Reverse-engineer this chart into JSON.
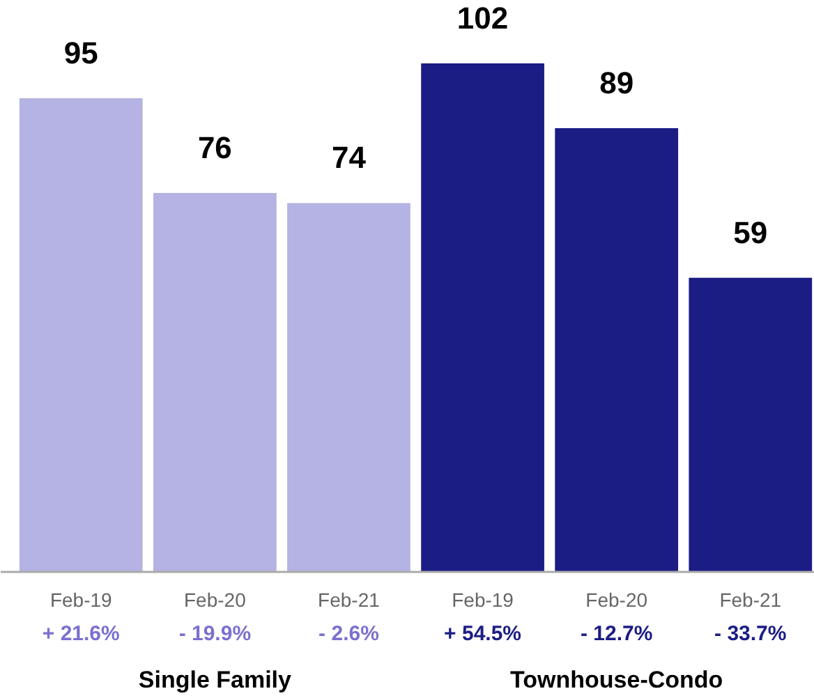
{
  "chart_data": {
    "type": "bar",
    "categories": [
      "Feb-19",
      "Feb-20",
      "Feb-21",
      "Feb-19",
      "Feb-20",
      "Feb-21"
    ],
    "values": [
      95,
      76,
      74,
      102,
      89,
      59
    ],
    "colors": [
      "#b4b3e3",
      "#b4b3e3",
      "#b4b3e3",
      "#1b1c84",
      "#1b1c84",
      "#1b1c84"
    ],
    "data_labels": true,
    "annotations": [
      "+ 21.6%",
      "- 19.9%",
      "- 2.6%",
      "+ 54.5%",
      "- 12.7%",
      "- 33.7%",
      "Single Family",
      "Townhouse-Condo"
    ]
  }
}
